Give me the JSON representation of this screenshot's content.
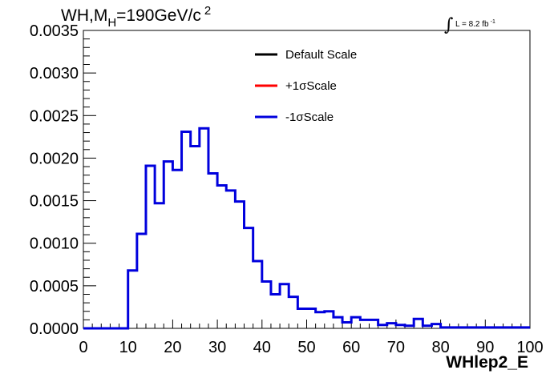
{
  "chart_data": {
    "type": "histogram",
    "title": {
      "main": "WH,M",
      "sub": "H",
      "rest": "=190GeV/c",
      "sup": "2"
    },
    "lumi": {
      "symbol": "∫",
      "text": "L = 8.2 fb",
      "sup": "-1"
    },
    "xlabel": "WHlep2_E",
    "ylabel": "",
    "xlim": [
      0,
      100
    ],
    "ylim": [
      0,
      0.0035
    ],
    "x_ticks": [
      "0",
      "10",
      "20",
      "30",
      "40",
      "50",
      "60",
      "70",
      "80",
      "90",
      "100"
    ],
    "y_ticks": [
      "0.0000",
      "0.0005",
      "0.0010",
      "0.0015",
      "0.0020",
      "0.0025",
      "0.0030",
      "0.0035"
    ],
    "bin_width": 2,
    "legend": {
      "position": "top-right",
      "entries": [
        {
          "label": "Default Scale",
          "color": "#000000"
        },
        {
          "label": "+1σScale",
          "color": "#ff0000"
        },
        {
          "label": "-1σScale",
          "color": "#0000dd"
        }
      ]
    },
    "series": [
      {
        "name": "-1σScale",
        "color": "#0000dd",
        "bin_edges_start": 0,
        "values": [
          0,
          0,
          0,
          0,
          0,
          0.00068,
          0.00111,
          0.00191,
          0.00147,
          0.00196,
          0.00186,
          0.00231,
          0.00214,
          0.00235,
          0.00182,
          0.00168,
          0.00162,
          0.00149,
          0.00118,
          0.00079,
          0.00055,
          0.0004,
          0.00052,
          0.00037,
          0.00023,
          0.00023,
          0.00019,
          0.0002,
          0.00013,
          7e-05,
          0.00013,
          0.0001,
          0.0001,
          4e-05,
          6e-05,
          4e-05,
          3e-05,
          0.00011,
          3e-05,
          5e-05,
          1e-05,
          1e-05,
          1e-05,
          1e-05,
          1e-05,
          1e-05,
          1e-05,
          1e-05,
          1e-05,
          1e-05
        ]
      }
    ]
  }
}
